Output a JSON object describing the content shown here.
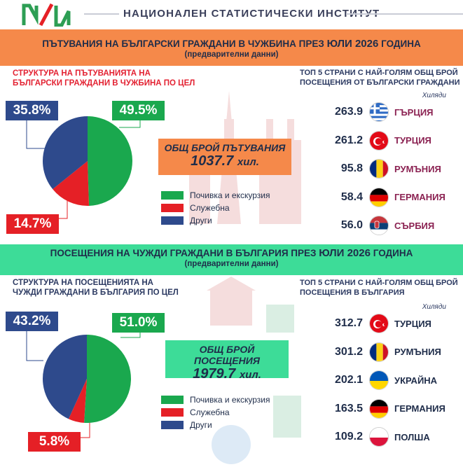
{
  "header": {
    "logo_text": "НИ",
    "org_name": "НАЦИОНАЛЕН СТАТИСТИЧЕСКИ ИНСТИТУТ"
  },
  "section1": {
    "banner_line1_pre": "ПЪТУВАНИЯ НА БЪЛГАРСКИ ГРАЖДАНИ В ЧУЖБИНА ПРЕЗ",
    "banner_line1_big": "ЮЛИ 2026",
    "banner_line1_post": "ГОДИНА",
    "banner_line2": "(предварителни данни)",
    "left_title_1": "СТРУКТУРА НА ПЪТУВАНИЯТА НА",
    "left_title_2": "БЪЛГАРСКИ ГРАЖДАНИ В ЧУЖБИНА ПО ЦЕЛ",
    "right_title_1": "ТОП 5 СТРАНИ С НАЙ-ГОЛЯМ ОБЩ БРОЙ",
    "right_title_2": "ПОСЕЩЕНИЯ ОТ БЪЛГАРСКИ ГРАЖДАНИ",
    "units": "Хиляди",
    "pie": {
      "rest": 49.5,
      "business": 14.7,
      "other": 35.8
    },
    "pct_rest": "49.5%",
    "pct_business": "14.7%",
    "pct_other": "35.8%",
    "total_label": "ОБЩ БРОЙ ПЪТУВАНИЯ",
    "total_value": "1037.7",
    "total_unit": "хил.",
    "legend": [
      "Почивка и екскурзия",
      "Служебна",
      "Други"
    ],
    "countries": [
      {
        "value": "263.9",
        "name": "ГЪРЦИЯ",
        "flag": "greece-flag-icon"
      },
      {
        "value": "261.2",
        "name": "ТУРЦИЯ",
        "flag": "turkey-flag-icon"
      },
      {
        "value": "95.8",
        "name": "РУМЪНИЯ",
        "flag": "romania-flag-icon"
      },
      {
        "value": "58.4",
        "name": "ГЕРМАНИЯ",
        "flag": "germany-flag-icon"
      },
      {
        "value": "56.0",
        "name": "СЪРБИЯ",
        "flag": "serbia-flag-icon"
      }
    ]
  },
  "section2": {
    "banner_line1_pre": "ПОСЕЩЕНИЯ НА ЧУЖДИ ГРАЖДАНИ В БЪЛГАРИЯ ПРЕЗ",
    "banner_line1_big": "ЮЛИ 2026",
    "banner_line1_post": "ГОДИНА",
    "banner_line2": "(предварителни данни)",
    "left_title_1": "СТРУКТУРА НА ПОСЕЩЕНИЯТА НА",
    "left_title_2": "ЧУЖДИ ГРАЖДАНИ В БЪЛГАРИЯ ПО ЦЕЛ",
    "right_title_1": "ТОП 5 СТРАНИ С НАЙ-ГОЛЯМ ОБЩ БРОЙ",
    "right_title_2": "ПОСЕЩЕНИЯ В БЪЛГАРИЯ",
    "units": "Хиляди",
    "pie": {
      "rest": 51.0,
      "business": 5.8,
      "other": 43.2
    },
    "pct_rest": "51.0%",
    "pct_business": "5.8%",
    "pct_other": "43.2%",
    "total_label": "ОБЩ БРОЙ ПОСЕЩЕНИЯ",
    "total_value": "1979.7",
    "total_unit": "хил.",
    "legend": [
      "Почивка и екскурзия",
      "Служебна",
      "Други"
    ],
    "countries": [
      {
        "value": "312.7",
        "name": "ТУРЦИЯ",
        "flag": "turkey-flag-icon"
      },
      {
        "value": "301.2",
        "name": "РУМЪНИЯ",
        "flag": "romania-flag-icon"
      },
      {
        "value": "202.1",
        "name": "УКРАЙНА",
        "flag": "ukraine-flag-icon"
      },
      {
        "value": "163.5",
        "name": "ГЕРМАНИЯ",
        "flag": "germany-flag-icon"
      },
      {
        "value": "109.2",
        "name": "ПОЛША",
        "flag": "poland-flag-icon"
      }
    ]
  },
  "colors": {
    "rest": "#1aa84e",
    "business": "#e52026",
    "other": "#2e4a8c",
    "orange": "#f5894a",
    "mint": "#3ddc98"
  }
}
